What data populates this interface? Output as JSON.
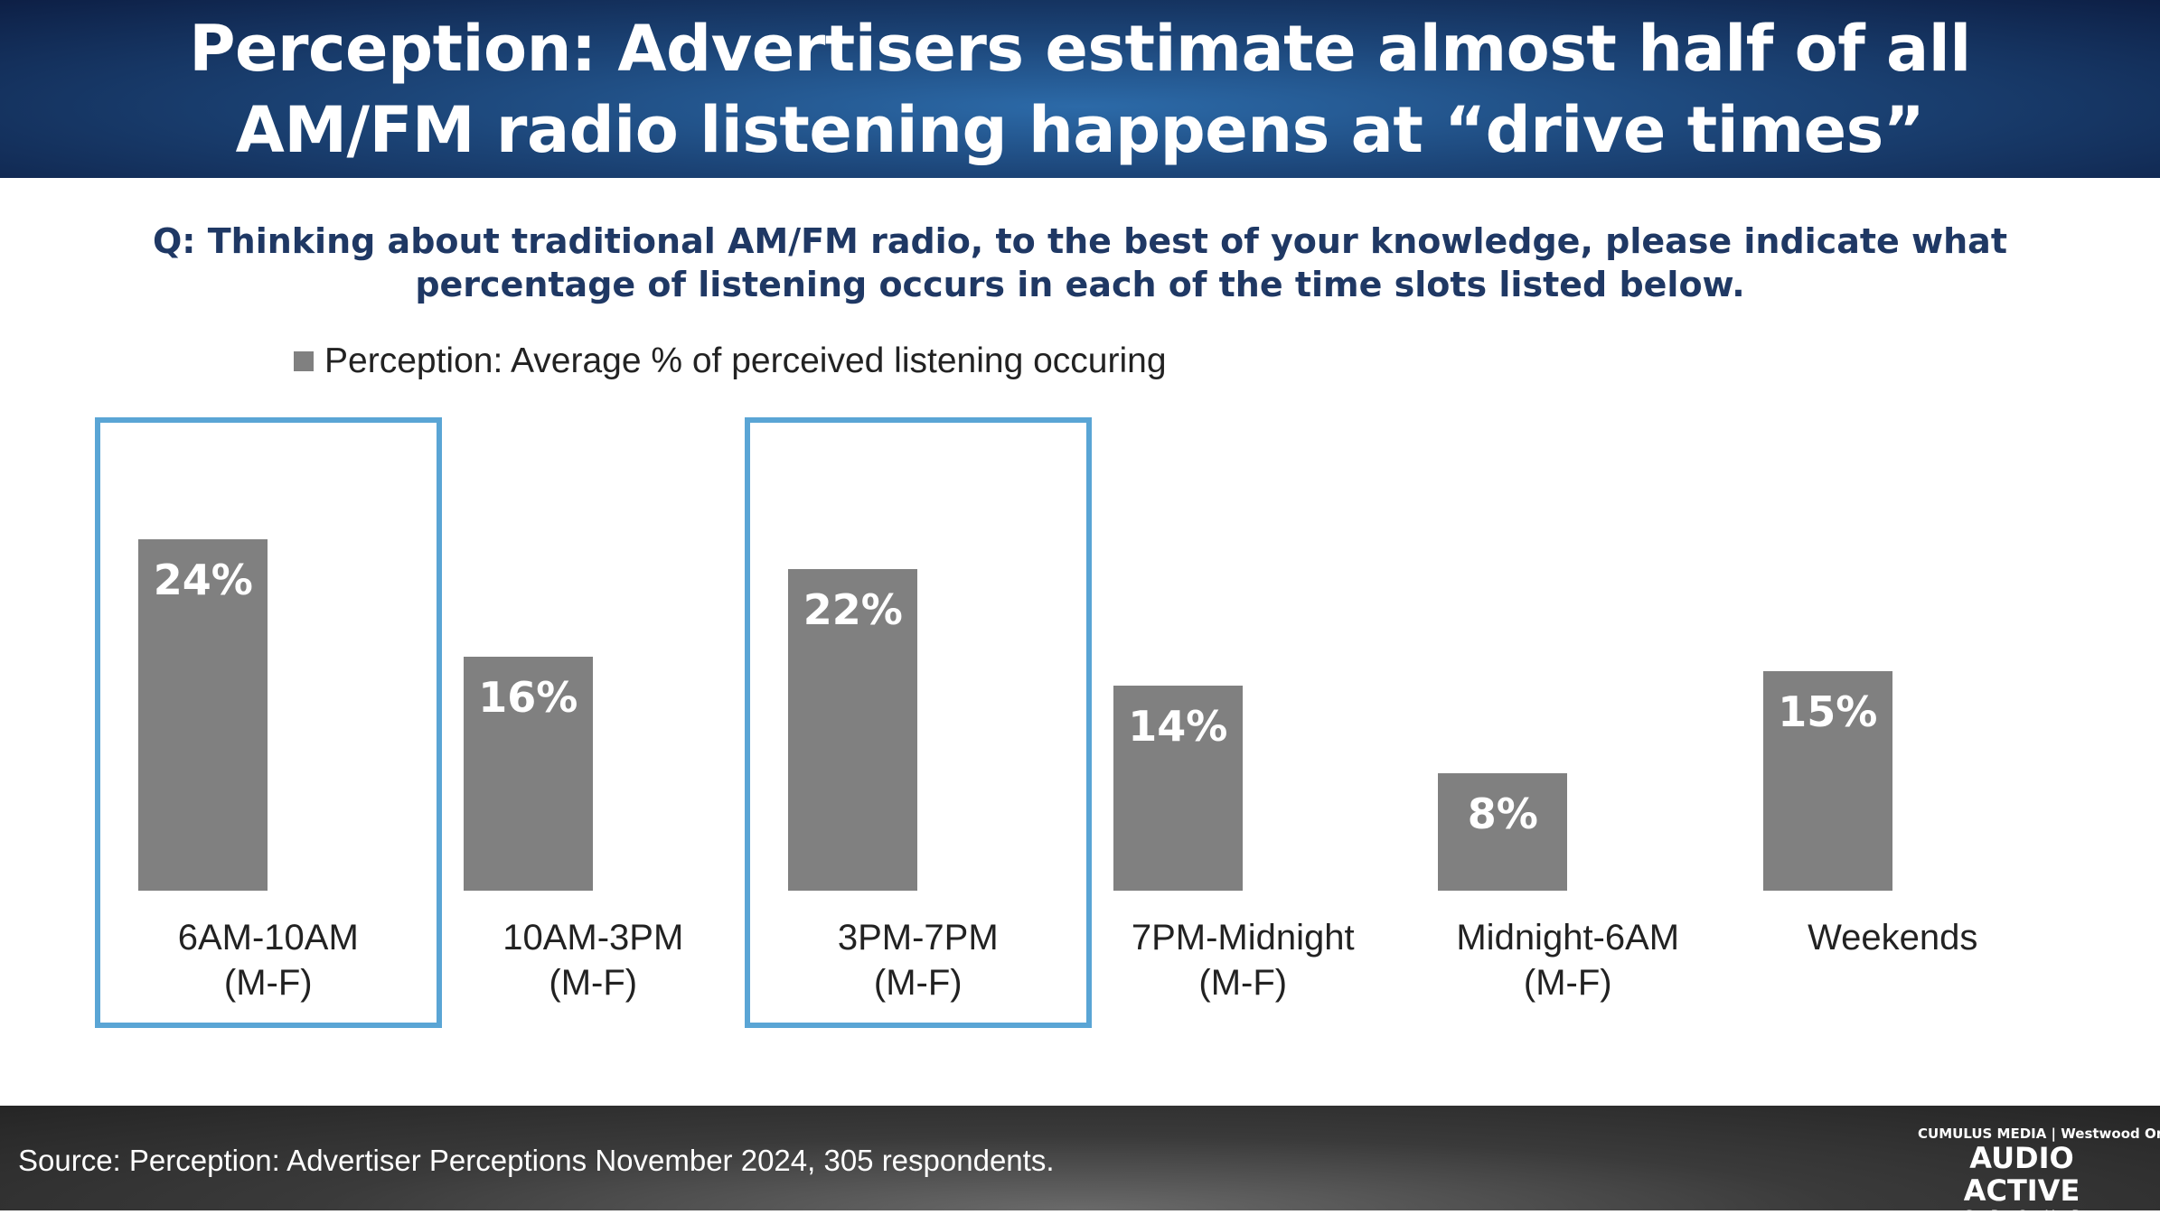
{
  "header": {
    "title_lines": [
      "Perception: Advertisers estimate almost half of all",
      "AM/FM radio listening happens at “drive times”"
    ]
  },
  "question_lines": [
    "Q: Thinking about traditional AM/FM radio, to the best of your knowledge, please indicate what",
    "percentage of listening occurs in each of the time slots listed below."
  ],
  "chart_data": {
    "type": "bar",
    "categories": [
      [
        "6AM-10AM",
        "(M-F)"
      ],
      [
        "10AM-3PM",
        "(M-F)"
      ],
      [
        "3PM-7PM",
        "(M-F)"
      ],
      [
        "7PM-Midnight",
        "(M-F)"
      ],
      [
        "Midnight-6AM",
        "(M-F)"
      ],
      [
        "Weekends",
        ""
      ]
    ],
    "series": [
      {
        "name": "Perception: Average % of perceived listening occuring",
        "values": [
          24,
          16,
          22,
          14,
          8,
          15
        ],
        "color": "#808080"
      }
    ],
    "value_labels": [
      "24%",
      "16%",
      "22%",
      "14%",
      "8%",
      "15%"
    ],
    "highlighted_categories": [
      0,
      2
    ],
    "highlight_color": "#5aa5d5",
    "legend_position": "top-left",
    "grid": false,
    "ylim": [
      0,
      24
    ]
  },
  "footer": {
    "source": "Source: Perception: Advertiser Perceptions November 2024, 305 respondents.",
    "logo": {
      "top": "CUMULUS MEDIA | Westwood One",
      "main": "AUDIO ACTIVE",
      "sub": "GROUP"
    }
  }
}
